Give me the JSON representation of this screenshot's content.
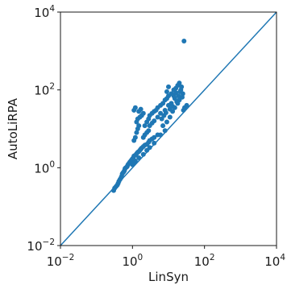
{
  "chart_data": {
    "type": "scatter",
    "title": "",
    "xlabel": "LinSyn",
    "ylabel": "AutoLiRPA",
    "x_scale": "log",
    "y_scale": "log",
    "xlim": [
      0.01,
      10000
    ],
    "ylim": [
      0.01,
      10000
    ],
    "x_ticks": [
      0.01,
      1,
      100,
      10000
    ],
    "y_ticks": [
      0.01,
      1,
      100,
      10000
    ],
    "tick_label_base": "10",
    "tick_label_exponents": [
      "−2",
      "0",
      "2",
      "4"
    ],
    "grid": false,
    "legend": "none",
    "reference_line": {
      "label": "",
      "from": [
        0.01,
        0.01
      ],
      "to": [
        10000,
        10000
      ]
    },
    "marker_color": "#1f77b4",
    "line_color": "#1f77b4",
    "series": [
      {
        "points": [
          [
            0.3,
            0.26
          ],
          [
            0.32,
            0.3
          ],
          [
            0.35,
            0.33
          ],
          [
            0.38,
            0.36
          ],
          [
            0.4,
            0.4
          ],
          [
            0.42,
            0.45
          ],
          [
            0.45,
            0.5
          ],
          [
            0.48,
            0.55
          ],
          [
            0.5,
            0.6
          ],
          [
            0.52,
            0.7
          ],
          [
            0.55,
            0.75
          ],
          [
            0.58,
            0.8
          ],
          [
            0.6,
            0.85
          ],
          [
            0.62,
            0.95
          ],
          [
            0.65,
            1.0
          ],
          [
            0.7,
            1.05
          ],
          [
            0.72,
            1.1
          ],
          [
            0.75,
            1.2
          ],
          [
            0.8,
            1.3
          ],
          [
            0.85,
            1.4
          ],
          [
            0.9,
            1.5
          ],
          [
            0.95,
            1.6
          ],
          [
            1.0,
            1.7
          ],
          [
            1.05,
            1.8
          ],
          [
            1.1,
            2.0
          ],
          [
            1.2,
            2.1
          ],
          [
            1.3,
            2.3
          ],
          [
            1.4,
            2.5
          ],
          [
            1.5,
            2.6
          ],
          [
            1.6,
            2.8
          ],
          [
            1.7,
            3.0
          ],
          [
            1.8,
            3.2
          ],
          [
            2.0,
            3.5
          ],
          [
            2.2,
            3.8
          ],
          [
            2.5,
            4.0
          ],
          [
            2.8,
            4.5
          ],
          [
            3.0,
            5.0
          ],
          [
            3.5,
            5.5
          ],
          [
            4.0,
            6.0
          ],
          [
            5.0,
            7.0
          ],
          [
            1.0,
            1.2
          ],
          [
            1.1,
            1.3
          ],
          [
            1.2,
            1.5
          ],
          [
            1.5,
            1.8
          ],
          [
            2.0,
            2.2
          ],
          [
            2.5,
            2.8
          ],
          [
            3.0,
            3.3
          ],
          [
            4.0,
            4.3
          ],
          [
            6.0,
            7.0
          ],
          [
            8.0,
            9.0
          ],
          [
            1.1,
            5.0
          ],
          [
            1.2,
            6.0
          ],
          [
            1.3,
            8.0
          ],
          [
            1.4,
            10.0
          ],
          [
            1.5,
            12.0
          ],
          [
            1.3,
            15.0
          ],
          [
            1.4,
            18.0
          ],
          [
            1.6,
            20.0
          ],
          [
            1.8,
            22.0
          ],
          [
            2.0,
            25.0
          ],
          [
            1.1,
            30.0
          ],
          [
            1.2,
            35.0
          ],
          [
            1.5,
            28.0
          ],
          [
            1.7,
            32.0
          ],
          [
            2.2,
            12.0
          ],
          [
            2.5,
            15.0
          ],
          [
            2.8,
            18.0
          ],
          [
            3.0,
            22.0
          ],
          [
            3.5,
            25.0
          ],
          [
            4.0,
            28.0
          ],
          [
            4.5,
            30.0
          ],
          [
            5.0,
            35.0
          ],
          [
            6.0,
            40.0
          ],
          [
            7.0,
            45.0
          ],
          [
            8.0,
            55.0
          ],
          [
            9.0,
            60.0
          ],
          [
            10.0,
            70.0
          ],
          [
            12.0,
            80.0
          ],
          [
            14.0,
            100.0
          ],
          [
            16.0,
            110.0
          ],
          [
            18.0,
            130.0
          ],
          [
            20.0,
            150.0
          ],
          [
            22.0,
            100.0
          ],
          [
            25.0,
            80.0
          ],
          [
            15.0,
            60.0
          ],
          [
            12.0,
            45.0
          ],
          [
            10.0,
            40.0
          ],
          [
            8.0,
            30.0
          ],
          [
            6.0,
            25.0
          ],
          [
            5.0,
            20.0
          ],
          [
            4.0,
            16.0
          ],
          [
            3.5,
            14.0
          ],
          [
            3.0,
            12.0
          ],
          [
            2.8,
            9.0
          ],
          [
            2.5,
            8.0
          ],
          [
            2.2,
            7.0
          ],
          [
            2.0,
            6.0
          ],
          [
            7.0,
            12.0
          ],
          [
            9.0,
            15.0
          ],
          [
            11.0,
            20.0
          ],
          [
            13.0,
            28.0
          ],
          [
            15.0,
            35.0
          ],
          [
            18.0,
            45.0
          ],
          [
            20.0,
            55.0
          ],
          [
            24.0,
            65.0
          ],
          [
            28.0,
            35.0
          ],
          [
            32.0,
            40.0
          ],
          [
            26.0,
            30.0
          ],
          [
            14.0,
            70.0
          ],
          [
            16.0,
            85.0
          ],
          [
            9.0,
            90.0
          ],
          [
            10.0,
            120.0
          ],
          [
            27.0,
            1800.0
          ],
          [
            6.5,
            18.0
          ],
          [
            7.5,
            22.0
          ],
          [
            8.5,
            26.0
          ],
          [
            11.0,
            32.0
          ],
          [
            13.0,
            38.0
          ],
          [
            17.0,
            50.0
          ],
          [
            19.0,
            70.0
          ],
          [
            21.0,
            90.0
          ],
          [
            23.0,
            120.0
          ]
        ]
      }
    ]
  }
}
